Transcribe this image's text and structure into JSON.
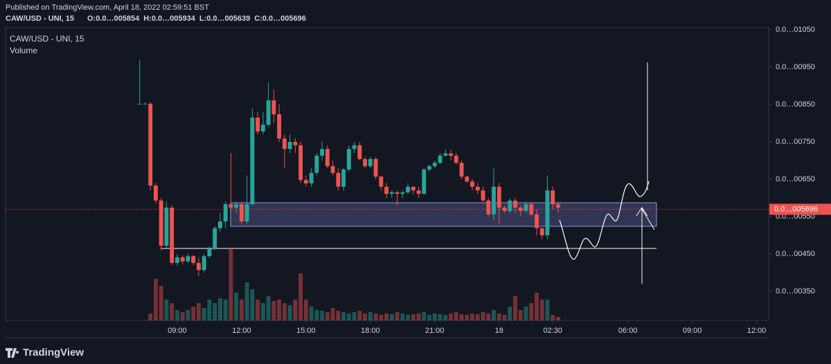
{
  "chart_data": {
    "type": "candlestick",
    "published": "Published on TradingView.com, April 18, 2022 02:59:51 BST",
    "title": "CAW/USD - UNI, 15",
    "ohlc_labels": [
      "O:0.0…005854",
      "H:0.0…005934",
      "L:0.0…005639",
      "C:0.0…005696"
    ],
    "pane_title": "CAW/USD - UNI, 15",
    "volume_label": "Volume",
    "brand": "TradingView",
    "up_color": "#26a69a",
    "down_color": "#ef5350",
    "open": [
      0.00852,
      0.00852,
      0.00852,
      0.00633,
      0.00593,
      0.00472,
      0.00574,
      0.00426,
      0.00441,
      0.0043,
      0.00444,
      0.00426,
      0.00407,
      0.00444,
      0.00463,
      0.00519,
      0.00537,
      0.00583,
      0.00574,
      0.00583,
      0.00537,
      0.00583,
      0.00815,
      0.00778,
      0.00796,
      0.00861,
      0.00824,
      0.00759,
      0.00731,
      0.0075,
      0.00741,
      0.00648,
      0.00639,
      0.00667,
      0.00713,
      0.00731,
      0.00685,
      0.00667,
      0.0063,
      0.00676,
      0.00731,
      0.00741,
      0.00704,
      0.00685,
      0.00704,
      0.00657,
      0.0063,
      0.00611,
      0.00615,
      0.00611,
      0.00615,
      0.0063,
      0.0062,
      0.00611,
      0.00676,
      0.00685,
      0.00694,
      0.00713,
      0.00719,
      0.00713,
      0.00694,
      0.00657,
      0.00644,
      0.0063,
      0.0062,
      0.00593,
      0.00556,
      0.0063,
      0.00574,
      0.00565,
      0.00593,
      0.00574,
      0.00565,
      0.00583,
      0.00556,
      0.00519,
      0.005,
      0.0062,
      0.00583
    ],
    "high": [
      0.0097,
      0.00856,
      0.00856,
      0.0064,
      0.006,
      0.0059,
      0.0058,
      0.0045,
      0.00446,
      0.0045,
      0.00448,
      0.0044,
      0.0045,
      0.0047,
      0.00525,
      0.0056,
      0.0059,
      0.0072,
      0.0059,
      0.0059,
      0.0066,
      0.0084,
      0.0083,
      0.0083,
      0.0091,
      0.0089,
      0.0085,
      0.0077,
      0.0077,
      0.0076,
      0.0075,
      0.0066,
      0.0068,
      0.0072,
      0.0075,
      0.0074,
      0.007,
      0.0068,
      0.0068,
      0.0074,
      0.0075,
      0.0075,
      0.0071,
      0.0071,
      0.0071,
      0.0066,
      0.0064,
      0.0062,
      0.0062,
      0.0062,
      0.0064,
      0.0063,
      0.0063,
      0.0068,
      0.0069,
      0.007,
      0.0072,
      0.0073,
      0.0073,
      0.0072,
      0.007,
      0.0066,
      0.0065,
      0.0064,
      0.0063,
      0.006,
      0.0068,
      0.0064,
      0.0058,
      0.006,
      0.006,
      0.0058,
      0.0059,
      0.0059,
      0.0057,
      0.0052,
      0.0066,
      0.0063,
      0.0059
    ],
    "low": [
      0.0085,
      0.0085,
      0.0062,
      0.00585,
      0.0046,
      0.00465,
      0.0042,
      0.00418,
      0.00422,
      0.00425,
      0.0042,
      0.0039,
      0.004,
      0.0044,
      0.0046,
      0.0051,
      0.0052,
      0.0056,
      0.0056,
      0.0053,
      0.0053,
      0.0058,
      0.0077,
      0.0077,
      0.0079,
      0.008,
      0.0075,
      0.0068,
      0.0072,
      0.0072,
      0.0064,
      0.0063,
      0.0063,
      0.0066,
      0.007,
      0.0068,
      0.0066,
      0.0062,
      0.0062,
      0.0067,
      0.0072,
      0.007,
      0.0068,
      0.0068,
      0.0065,
      0.0062,
      0.006,
      0.006,
      0.0058,
      0.006,
      0.0061,
      0.0061,
      0.006,
      0.0061,
      0.0067,
      0.0068,
      0.0069,
      0.0071,
      0.007,
      0.0069,
      0.0065,
      0.0064,
      0.0062,
      0.0061,
      0.0059,
      0.0055,
      0.0054,
      0.0053,
      0.0056,
      0.0056,
      0.0056,
      0.0055,
      0.0056,
      0.0055,
      0.005,
      0.0049,
      0.0049,
      0.0057,
      0.0056
    ],
    "close": [
      0.00852,
      0.00852,
      0.00633,
      0.00593,
      0.00472,
      0.00574,
      0.00426,
      0.00441,
      0.0043,
      0.00444,
      0.00426,
      0.00407,
      0.00444,
      0.00463,
      0.00519,
      0.00537,
      0.00583,
      0.00574,
      0.00583,
      0.00537,
      0.00583,
      0.00815,
      0.00778,
      0.00796,
      0.00861,
      0.00824,
      0.00759,
      0.00731,
      0.0075,
      0.00741,
      0.00648,
      0.00639,
      0.00667,
      0.00713,
      0.00731,
      0.00685,
      0.00667,
      0.0063,
      0.00676,
      0.00731,
      0.00741,
      0.00704,
      0.00685,
      0.00704,
      0.00657,
      0.0063,
      0.00611,
      0.00615,
      0.00611,
      0.00615,
      0.0063,
      0.0062,
      0.00611,
      0.00676,
      0.00685,
      0.00694,
      0.00713,
      0.00719,
      0.00713,
      0.00694,
      0.00657,
      0.00644,
      0.0063,
      0.0062,
      0.00593,
      0.00556,
      0.0063,
      0.00574,
      0.00565,
      0.00593,
      0.00574,
      0.00565,
      0.00583,
      0.00556,
      0.00519,
      0.005,
      0.0062,
      0.00583,
      0.00574
    ],
    "volume": [
      0,
      0,
      10,
      60,
      50,
      30,
      25,
      15,
      12,
      15,
      20,
      25,
      18,
      30,
      25,
      32,
      30,
      105,
      40,
      30,
      55,
      45,
      30,
      25,
      35,
      28,
      30,
      25,
      22,
      30,
      68,
      30,
      20,
      15,
      14,
      12,
      18,
      14,
      12,
      10,
      12,
      14,
      10,
      12,
      10,
      8,
      10,
      9,
      12,
      10,
      8,
      9,
      10,
      12,
      8,
      10,
      9,
      8,
      10,
      12,
      9,
      8,
      10,
      9,
      12,
      10,
      15,
      10,
      8,
      20,
      35,
      15,
      20,
      25,
      40,
      30,
      30,
      8,
      5
    ],
    "xlim": [
      -25,
      117.5
    ],
    "xticks": [
      {
        "value": 7,
        "label": "09:00"
      },
      {
        "value": 19,
        "label": "12:00"
      },
      {
        "value": 31,
        "label": "15:00"
      },
      {
        "value": 43,
        "label": "18:00"
      },
      {
        "value": 55,
        "label": "21:00"
      },
      {
        "value": 67,
        "label": "18"
      },
      {
        "value": 77,
        "label": "02:30"
      },
      {
        "value": 91,
        "label": "06:00"
      },
      {
        "value": 103,
        "label": "09:00"
      },
      {
        "value": 115,
        "label": "12:00"
      }
    ],
    "ylim": [
      0.002722,
      0.010556
    ],
    "yticks": [
      {
        "value": 0.0105,
        "label": "0.0…01050"
      },
      {
        "value": 0.0095,
        "label": "0.0…00950"
      },
      {
        "value": 0.0085,
        "label": "0.0…00850"
      },
      {
        "value": 0.0075,
        "label": "0.0…00750"
      },
      {
        "value": 0.0065,
        "label": "0.0…00650"
      },
      {
        "value": 0.0055,
        "label": "0.0…00550"
      },
      {
        "value": 0.0045,
        "label": "0.0…00450"
      },
      {
        "value": 0.0035,
        "label": "0.0…00350"
      }
    ],
    "last_price": {
      "value": 0.005696,
      "label": "0.0…005696"
    },
    "grid": false
  }
}
